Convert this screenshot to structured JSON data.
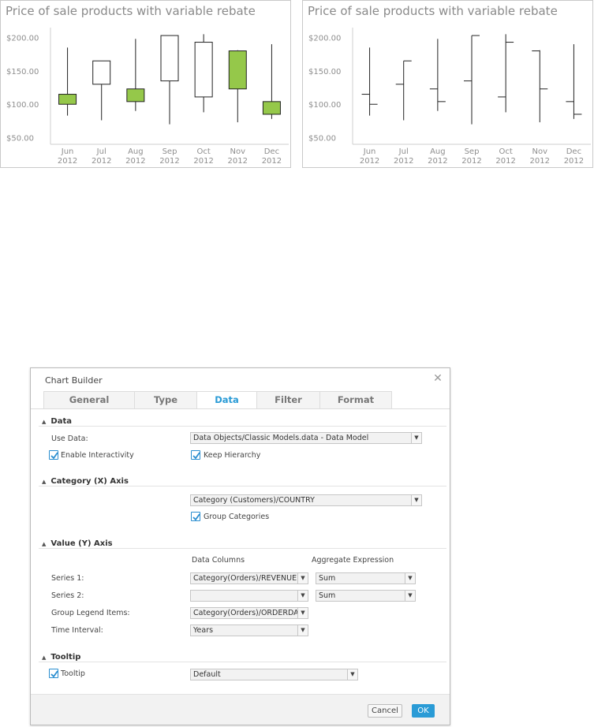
{
  "charts": [
    {
      "chart_data": {
        "type": "candlestick",
        "title": "Price of sale products with variable rebate",
        "categories": [
          "Jun 2012",
          "Jul 2012",
          "Aug 2012",
          "Sep 2012",
          "Oct 2012",
          "Nov 2012",
          "Dec 2012"
        ],
        "category_lines": [
          [
            "Jun",
            "2012"
          ],
          [
            "Jul",
            "2012"
          ],
          [
            "Aug",
            "2012"
          ],
          [
            "Sep",
            "2012"
          ],
          [
            "Oct",
            "2012"
          ],
          [
            "Nov",
            "2012"
          ],
          [
            "Dec",
            "2012"
          ]
        ],
        "y_ticks": [
          "$50.00",
          "$100.00",
          "$150.00",
          "$200.00"
        ],
        "y_tick_values": [
          50,
          100,
          150,
          200
        ],
        "ylim": [
          40,
          222
        ],
        "ohlc": [
          {
            "open": 115,
            "high": 185,
            "low": 83,
            "close": 100
          },
          {
            "open": 130,
            "high": 165,
            "low": 76,
            "close": 165
          },
          {
            "open": 123,
            "high": 198,
            "low": 90,
            "close": 104
          },
          {
            "open": 135,
            "high": 203,
            "low": 70,
            "close": 203
          },
          {
            "open": 111,
            "high": 205,
            "low": 88,
            "close": 193
          },
          {
            "open": 180,
            "high": 181,
            "low": 73,
            "close": 123
          },
          {
            "open": 104,
            "high": 190,
            "low": 78,
            "close": 85
          }
        ],
        "colors": {
          "down_fill": "#95c84a",
          "up_fill": "#ffffff",
          "stroke": "#222222"
        }
      }
    },
    {
      "chart_data": {
        "type": "ohlc",
        "title": "Price of sale products with variable rebate",
        "categories": [
          "Jun 2012",
          "Jul 2012",
          "Aug 2012",
          "Sep 2012",
          "Oct 2012",
          "Nov 2012",
          "Dec 2012"
        ],
        "category_lines": [
          [
            "Jun",
            "2012"
          ],
          [
            "Jul",
            "2012"
          ],
          [
            "Aug",
            "2012"
          ],
          [
            "Sep",
            "2012"
          ],
          [
            "Oct",
            "2012"
          ],
          [
            "Nov",
            "2012"
          ],
          [
            "Dec",
            "2012"
          ]
        ],
        "y_ticks": [
          "$50.00",
          "$100.00",
          "$150.00",
          "$200.00"
        ],
        "y_tick_values": [
          50,
          100,
          150,
          200
        ],
        "ylim": [
          40,
          222
        ],
        "ohlc": [
          {
            "open": 115,
            "high": 185,
            "low": 83,
            "close": 100
          },
          {
            "open": 130,
            "high": 165,
            "low": 76,
            "close": 165
          },
          {
            "open": 123,
            "high": 198,
            "low": 90,
            "close": 104
          },
          {
            "open": 135,
            "high": 203,
            "low": 70,
            "close": 203
          },
          {
            "open": 111,
            "high": 205,
            "low": 88,
            "close": 193
          },
          {
            "open": 180,
            "high": 181,
            "low": 73,
            "close": 123
          },
          {
            "open": 104,
            "high": 190,
            "low": 78,
            "close": 85
          }
        ],
        "colors": {
          "stroke": "#222222"
        }
      }
    }
  ],
  "dialog": {
    "title": "Chart Builder",
    "tabs": [
      "General",
      "Type",
      "Data",
      "Filter",
      "Format"
    ],
    "active_tab": "Data",
    "sections": {
      "data": {
        "title": "Data",
        "use_data_label": "Use Data:",
        "use_data_value": "Data Objects/Classic Models.data - Data Model",
        "enable_interactivity": "Enable Interactivity",
        "keep_hierarchy": "Keep Hierarchy"
      },
      "category": {
        "title": "Category (X) Axis",
        "value": "Category (Customers)/COUNTRY",
        "group_categories": "Group Categories"
      },
      "value": {
        "title": "Value (Y) Axis",
        "data_columns": "Data Columns",
        "aggregate_expression": "Aggregate Expression",
        "series1_label": "Series 1:",
        "series1_value": "Category(Orders)/REVENUE",
        "series1_agg": "Sum",
        "series2_label": "Series 2:",
        "series2_value": "",
        "series2_agg": "Sum",
        "group_legend_label": "Group Legend Items:",
        "group_legend_value": "Category(Orders)/ORDERDAT",
        "time_interval_label": "Time Interval:",
        "time_interval_value": "Years"
      },
      "tooltip": {
        "title": "Tooltip",
        "checkbox_label": "Tooltip",
        "value": "Default"
      }
    },
    "buttons": {
      "cancel": "Cancel",
      "ok": "OK"
    },
    "colors": {
      "accent": "#2a9bd6"
    }
  }
}
